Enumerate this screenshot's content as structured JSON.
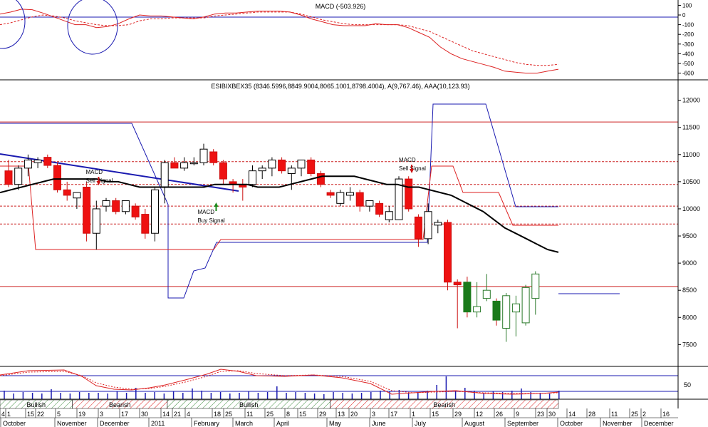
{
  "macd_panel": {
    "title": "MACD (-503.926)",
    "yticks": [
      100,
      0,
      -100,
      -200,
      -300,
      -400,
      -500,
      -600
    ],
    "ylim": [
      -640,
      140
    ]
  },
  "price_panel": {
    "title": "ESIBIXBEX35 (8346.5996,8849.9004,8065.1001,8798.4004), A(9,767.46), AAA(10,123.93)",
    "yticks": [
      12000,
      11500,
      11000,
      10500,
      10000,
      9500,
      9000,
      8500,
      8000,
      7500
    ],
    "ylim": [
      7150,
      12350
    ]
  },
  "annotations": [
    {
      "lines": [
        "MACD",
        "Sell Signal"
      ],
      "arrow": "down",
      "slot": 17
    },
    {
      "lines": [
        "MACD",
        "Buy Signal"
      ],
      "arrow": "up",
      "slot": 37
    },
    {
      "lines": [
        "MACD",
        "Sell Signal"
      ],
      "arrow": "down",
      "slot": 73
    }
  ],
  "volume_panel": {
    "ytick": "50"
  },
  "regime_bar": {
    "segments": [
      {
        "label": "Bullish",
        "kind": "bull",
        "from": 0,
        "to": 16
      },
      {
        "label": "Bearish",
        "kind": "bear",
        "from": 16,
        "to": 37
      },
      {
        "label": "Bullish",
        "kind": "bull",
        "from": 37,
        "to": 73
      },
      {
        "label": "Bearish",
        "kind": "bear",
        "from": 73,
        "to": 124
      }
    ]
  },
  "date_axis": {
    "day_labels": [
      "4",
      "1",
      "15",
      "22",
      "5",
      "19",
      "3",
      "17",
      "30",
      "14",
      "21",
      "4",
      "18",
      "25",
      "11",
      "25",
      "8",
      "15",
      "29",
      "13",
      "20",
      "3",
      "17",
      "1",
      "15",
      "29",
      "12",
      "26",
      "9",
      "23",
      "30",
      "14",
      "28",
      "11",
      "25",
      "2",
      "16"
    ],
    "month_labels": [
      "October",
      "November",
      "December",
      "2011",
      "February",
      "March",
      "April",
      "May",
      "June",
      "July",
      "August",
      "September",
      "October",
      "November",
      "December"
    ]
  },
  "chart_data": {
    "type": "candlestick",
    "title": "ESIBIXBEX35 (8346.5996,8849.9004,8065.1001,8798.4004), A(9,767.46), AAA(10,123.93)",
    "xlabel": "",
    "ylabel": "",
    "ylim": [
      7150,
      12350
    ],
    "period": "weekly",
    "candles": [
      {
        "o": 10700,
        "h": 10900,
        "l": 10400,
        "c": 10450
      },
      {
        "o": 10450,
        "h": 10800,
        "l": 10350,
        "c": 10750
      },
      {
        "o": 10750,
        "h": 11000,
        "l": 10600,
        "c": 10900
      },
      {
        "o": 10850,
        "h": 10950,
        "l": 10750,
        "c": 10900
      },
      {
        "o": 10950,
        "h": 11000,
        "l": 10750,
        "c": 10800
      },
      {
        "o": 10800,
        "h": 10850,
        "l": 10300,
        "c": 10350
      },
      {
        "o": 10350,
        "h": 10500,
        "l": 10150,
        "c": 10250
      },
      {
        "o": 10200,
        "h": 10300,
        "l": 10000,
        "c": 10300
      },
      {
        "o": 10400,
        "h": 10500,
        "l": 9400,
        "c": 9550
      },
      {
        "o": 9550,
        "h": 10150,
        "l": 9250,
        "c": 10000
      },
      {
        "o": 10050,
        "h": 10200,
        "l": 9950,
        "c": 10150
      },
      {
        "o": 10150,
        "h": 10200,
        "l": 9900,
        "c": 9950
      },
      {
        "o": 9950,
        "h": 10150,
        "l": 9900,
        "c": 10150
      },
      {
        "o": 10050,
        "h": 10100,
        "l": 9800,
        "c": 9850
      },
      {
        "o": 9900,
        "h": 10000,
        "l": 9450,
        "c": 9550
      },
      {
        "o": 9550,
        "h": 10400,
        "l": 9400,
        "c": 10350
      },
      {
        "o": 10400,
        "h": 10900,
        "l": 10100,
        "c": 10850
      },
      {
        "o": 10850,
        "h": 10950,
        "l": 10750,
        "c": 10750
      },
      {
        "o": 10750,
        "h": 10950,
        "l": 10700,
        "c": 10850
      },
      {
        "o": 10850,
        "h": 10950,
        "l": 10800,
        "c": 10850
      },
      {
        "o": 10850,
        "h": 11200,
        "l": 10800,
        "c": 11100
      },
      {
        "o": 11050,
        "h": 11100,
        "l": 10800,
        "c": 10850
      },
      {
        "o": 10850,
        "h": 10900,
        "l": 10450,
        "c": 10550
      },
      {
        "o": 10500,
        "h": 10550,
        "l": 10300,
        "c": 10450
      },
      {
        "o": 10450,
        "h": 10550,
        "l": 10150,
        "c": 10400
      },
      {
        "o": 10450,
        "h": 10800,
        "l": 10400,
        "c": 10700
      },
      {
        "o": 10700,
        "h": 10800,
        "l": 10550,
        "c": 10750
      },
      {
        "o": 10750,
        "h": 10950,
        "l": 10600,
        "c": 10900
      },
      {
        "o": 10900,
        "h": 10950,
        "l": 10650,
        "c": 10700
      },
      {
        "o": 10650,
        "h": 10800,
        "l": 10350,
        "c": 10750
      },
      {
        "o": 10750,
        "h": 10900,
        "l": 10600,
        "c": 10900
      },
      {
        "o": 10900,
        "h": 10950,
        "l": 10600,
        "c": 10650
      },
      {
        "o": 10650,
        "h": 10700,
        "l": 10400,
        "c": 10450
      },
      {
        "o": 10300,
        "h": 10350,
        "l": 10200,
        "c": 10250
      },
      {
        "o": 10100,
        "h": 10350,
        "l": 10050,
        "c": 10300
      },
      {
        "o": 10250,
        "h": 10400,
        "l": 10150,
        "c": 10300
      },
      {
        "o": 10300,
        "h": 10350,
        "l": 9950,
        "c": 10050
      },
      {
        "o": 10050,
        "h": 10150,
        "l": 9950,
        "c": 10150
      },
      {
        "o": 10100,
        "h": 10150,
        "l": 9850,
        "c": 9900
      },
      {
        "o": 9800,
        "h": 10050,
        "l": 9750,
        "c": 9950
      },
      {
        "o": 9800,
        "h": 10600,
        "l": 9800,
        "c": 10550
      },
      {
        "o": 10550,
        "h": 10600,
        "l": 9950,
        "c": 10000
      },
      {
        "o": 9850,
        "h": 9900,
        "l": 9300,
        "c": 9450
      },
      {
        "o": 9450,
        "h": 10100,
        "l": 9350,
        "c": 9950
      },
      {
        "o": 9700,
        "h": 9800,
        "l": 9550,
        "c": 9750
      },
      {
        "o": 9750,
        "h": 9800,
        "l": 8500,
        "c": 8650
      },
      {
        "o": 8650,
        "h": 8700,
        "l": 7800,
        "c": 8600
      },
      {
        "o": 8650,
        "h": 8750,
        "l": 8000,
        "c": 8100
      },
      {
        "o": 8100,
        "h": 8650,
        "l": 8000,
        "c": 8200
      },
      {
        "o": 8350,
        "h": 8800,
        "l": 8300,
        "c": 8500
      },
      {
        "o": 8300,
        "h": 8350,
        "l": 7850,
        "c": 7950
      },
      {
        "o": 7800,
        "h": 8450,
        "l": 7550,
        "c": 8400
      },
      {
        "o": 8100,
        "h": 8400,
        "l": 7650,
        "c": 8250
      },
      {
        "o": 7900,
        "h": 8600,
        "l": 7850,
        "c": 8550
      },
      {
        "o": 8350,
        "h": 8850,
        "l": 8050,
        "c": 8800
      }
    ],
    "moving_average": [
      10300,
      10350,
      10400,
      10450,
      10500,
      10550,
      10550,
      10550,
      10550,
      10550,
      10500,
      10500,
      10450,
      10400,
      10400,
      10400,
      10400,
      10400,
      10400,
      10400,
      10450,
      10450,
      10450,
      10450,
      10400,
      10400,
      10400,
      10450,
      10500,
      10550,
      10600,
      10600,
      10600,
      10600,
      10550,
      10500,
      10450,
      10450,
      10400,
      10400,
      10350,
      10300,
      10250,
      10150,
      10050,
      9950,
      9800,
      9650,
      9550,
      9450,
      9350,
      9250,
      9200
    ],
    "resistance_levels": [
      11600,
      10870,
      10450,
      10050,
      9720,
      8570
    ],
    "trendline": {
      "from": 11150,
      "to": 10440
    }
  }
}
